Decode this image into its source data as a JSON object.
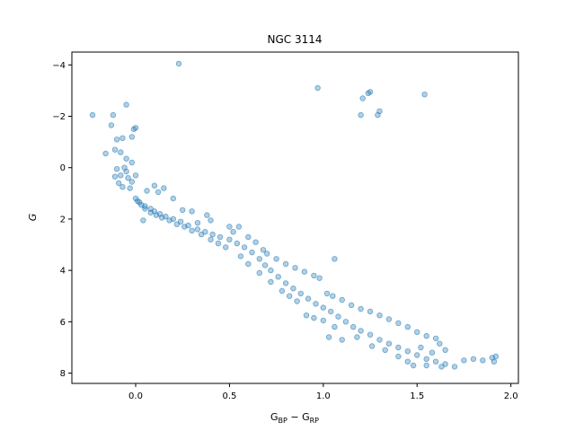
{
  "chart_data": {
    "type": "scatter",
    "title": "NGC 3114",
    "xlabel": "G_BP − G_RP",
    "ylabel": "G",
    "xlim": [
      -0.34,
      2.04
    ],
    "ylim": [
      8.4,
      -4.5
    ],
    "y_inverted": true,
    "xticks": [
      0.0,
      0.5,
      1.0,
      1.5,
      2.0
    ],
    "xtick_labels": [
      "0.0",
      "0.5",
      "1.0",
      "1.5",
      "2.0"
    ],
    "yticks": [
      -4,
      -2,
      0,
      2,
      4,
      6,
      8
    ],
    "ytick_labels": [
      "−4",
      "−2",
      "0",
      "2",
      "4",
      "6",
      "8"
    ],
    "grid": false,
    "marker_color": "#1f77b4",
    "marker_alpha": 0.35,
    "series": [
      {
        "points": [
          [
            -0.23,
            -2.05
          ],
          [
            -0.12,
            -2.05
          ],
          [
            -0.05,
            -2.45
          ],
          [
            -0.13,
            -1.65
          ],
          [
            -0.01,
            -1.5
          ],
          [
            0.0,
            -1.55
          ],
          [
            -0.02,
            -1.2
          ],
          [
            -0.1,
            -1.1
          ],
          [
            -0.07,
            -1.15
          ],
          [
            -0.16,
            -0.55
          ],
          [
            -0.11,
            -0.7
          ],
          [
            -0.08,
            -0.6
          ],
          [
            -0.05,
            -0.35
          ],
          [
            -0.02,
            -0.2
          ],
          [
            -0.06,
            0.0
          ],
          [
            -0.1,
            0.05
          ],
          [
            -0.08,
            0.3
          ],
          [
            -0.04,
            0.4
          ],
          [
            -0.02,
            0.55
          ],
          [
            -0.09,
            0.6
          ],
          [
            -0.07,
            0.75
          ],
          [
            -0.03,
            0.8
          ],
          [
            -0.05,
            0.15
          ],
          [
            -0.11,
            0.35
          ],
          [
            0.0,
            0.3
          ],
          [
            0.23,
            -4.05
          ],
          [
            0.97,
            -3.1
          ],
          [
            1.21,
            -2.7
          ],
          [
            1.24,
            -2.9
          ],
          [
            1.25,
            -2.95
          ],
          [
            1.2,
            -2.05
          ],
          [
            1.3,
            -2.2
          ],
          [
            1.29,
            -2.05
          ],
          [
            1.54,
            -2.85
          ],
          [
            1.06,
            3.55
          ],
          [
            0.04,
            2.05
          ],
          [
            0.0,
            1.2
          ],
          [
            0.02,
            1.35
          ],
          [
            0.05,
            1.5
          ],
          [
            0.08,
            1.6
          ],
          [
            0.1,
            1.7
          ],
          [
            0.13,
            1.8
          ],
          [
            0.16,
            1.9
          ],
          [
            0.2,
            2.0
          ],
          [
            0.24,
            2.1
          ],
          [
            0.28,
            2.25
          ],
          [
            0.33,
            2.4
          ],
          [
            0.37,
            2.5
          ],
          [
            0.41,
            2.6
          ],
          [
            0.45,
            2.7
          ],
          [
            0.5,
            2.8
          ],
          [
            0.54,
            2.95
          ],
          [
            0.58,
            3.1
          ],
          [
            0.62,
            3.3
          ],
          [
            0.66,
            3.55
          ],
          [
            0.69,
            3.8
          ],
          [
            0.72,
            4.0
          ],
          [
            0.76,
            4.25
          ],
          [
            0.8,
            4.5
          ],
          [
            0.84,
            4.7
          ],
          [
            0.88,
            4.9
          ],
          [
            0.92,
            5.1
          ],
          [
            0.96,
            5.3
          ],
          [
            1.0,
            5.45
          ],
          [
            1.04,
            5.6
          ],
          [
            1.08,
            5.8
          ],
          [
            1.12,
            6.0
          ],
          [
            1.16,
            6.2
          ],
          [
            1.2,
            6.35
          ],
          [
            1.25,
            6.5
          ],
          [
            1.3,
            6.7
          ],
          [
            1.35,
            6.85
          ],
          [
            1.4,
            7.0
          ],
          [
            1.45,
            7.15
          ],
          [
            1.5,
            7.3
          ],
          [
            1.55,
            7.45
          ],
          [
            1.6,
            7.55
          ],
          [
            1.65,
            7.65
          ],
          [
            1.7,
            7.75
          ],
          [
            1.75,
            7.5
          ],
          [
            1.8,
            7.45
          ],
          [
            1.85,
            7.5
          ],
          [
            1.9,
            7.4
          ],
          [
            1.91,
            7.55
          ],
          [
            1.92,
            7.35
          ],
          [
            0.1,
            0.7
          ],
          [
            0.15,
            0.8
          ],
          [
            0.12,
            0.95
          ],
          [
            0.06,
            0.9
          ],
          [
            0.2,
            1.2
          ],
          [
            0.25,
            1.65
          ],
          [
            0.3,
            1.7
          ],
          [
            0.38,
            1.85
          ],
          [
            0.4,
            2.05
          ],
          [
            0.33,
            2.15
          ],
          [
            0.5,
            2.3
          ],
          [
            0.55,
            2.3
          ],
          [
            0.52,
            2.5
          ],
          [
            0.6,
            2.7
          ],
          [
            0.64,
            2.9
          ],
          [
            0.68,
            3.2
          ],
          [
            0.7,
            3.35
          ],
          [
            0.75,
            3.55
          ],
          [
            0.8,
            3.75
          ],
          [
            0.85,
            3.9
          ],
          [
            0.9,
            4.05
          ],
          [
            0.95,
            4.2
          ],
          [
            0.98,
            4.3
          ],
          [
            1.02,
            4.9
          ],
          [
            1.05,
            5.0
          ],
          [
            1.1,
            5.15
          ],
          [
            1.15,
            5.35
          ],
          [
            1.2,
            5.5
          ],
          [
            1.25,
            5.6
          ],
          [
            1.3,
            5.75
          ],
          [
            1.35,
            5.9
          ],
          [
            1.4,
            6.05
          ],
          [
            1.45,
            6.2
          ],
          [
            1.5,
            6.4
          ],
          [
            1.55,
            6.55
          ],
          [
            1.6,
            6.65
          ],
          [
            1.62,
            6.85
          ],
          [
            1.65,
            7.1
          ],
          [
            1.58,
            7.2
          ],
          [
            1.52,
            7.0
          ],
          [
            1.03,
            6.6
          ],
          [
            1.1,
            6.7
          ],
          [
            1.18,
            6.6
          ],
          [
            1.26,
            6.95
          ],
          [
            1.33,
            7.1
          ],
          [
            1.4,
            7.35
          ],
          [
            1.45,
            7.55
          ],
          [
            1.48,
            7.7
          ],
          [
            1.55,
            7.7
          ],
          [
            1.63,
            7.75
          ],
          [
            0.91,
            5.75
          ],
          [
            0.95,
            5.85
          ],
          [
            1.0,
            5.95
          ],
          [
            1.06,
            6.2
          ],
          [
            0.82,
            5.0
          ],
          [
            0.78,
            4.8
          ],
          [
            0.86,
            5.2
          ],
          [
            0.72,
            4.45
          ],
          [
            0.66,
            4.1
          ],
          [
            0.6,
            3.75
          ],
          [
            0.56,
            3.45
          ],
          [
            0.48,
            3.1
          ],
          [
            0.44,
            2.95
          ],
          [
            0.4,
            2.8
          ],
          [
            0.35,
            2.6
          ],
          [
            0.3,
            2.45
          ],
          [
            0.26,
            2.3
          ],
          [
            0.22,
            2.2
          ],
          [
            0.18,
            2.05
          ],
          [
            0.14,
            1.95
          ],
          [
            0.11,
            1.85
          ],
          [
            0.08,
            1.75
          ],
          [
            0.05,
            1.6
          ],
          [
            0.03,
            1.45
          ],
          [
            0.01,
            1.3
          ]
        ]
      }
    ]
  }
}
